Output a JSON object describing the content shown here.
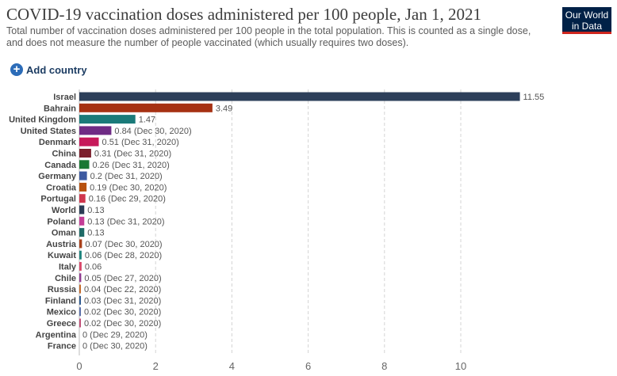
{
  "header": {
    "title": "COVID-19 vaccination doses administered per 100 people, Jan 1, 2021",
    "subtitle": "Total number of vaccination doses administered per 100 people in the total population. This is counted as a single dose, and does not measure the number of people vaccinated (which usually requires two doses).",
    "logo_line1": "Our World",
    "logo_line2": "in Data",
    "add_country_label": "Add country",
    "add_country_icon": "plus-circle-icon"
  },
  "colors": {
    "logo_bg": "#002147",
    "logo_accent": "#ce261e",
    "add_country_icon": "#2c6cb8"
  },
  "chart_data": {
    "type": "bar",
    "orientation": "horizontal",
    "title": "COVID-19 vaccination doses administered per 100 people, Jan 1, 2021",
    "xlabel": "",
    "ylabel": "",
    "xlim": [
      0,
      12
    ],
    "ticks": [
      0,
      2,
      4,
      6,
      8,
      10
    ],
    "grid": "vertical dashed",
    "categories": [
      "Israel",
      "Bahrain",
      "United Kingdom",
      "United States",
      "Denmark",
      "China",
      "Canada",
      "Germany",
      "Croatia",
      "Portugal",
      "World",
      "Poland",
      "Oman",
      "Austria",
      "Kuwait",
      "Italy",
      "Chile",
      "Russia",
      "Finland",
      "Mexico",
      "Greece",
      "Argentina",
      "France"
    ],
    "values": [
      11.55,
      3.49,
      1.47,
      0.84,
      0.51,
      0.31,
      0.26,
      0.2,
      0.19,
      0.16,
      0.13,
      0.13,
      0.13,
      0.07,
      0.06,
      0.06,
      0.05,
      0.04,
      0.03,
      0.02,
      0.02,
      0,
      0
    ],
    "labels": [
      "11.55",
      "3.49",
      "1.47",
      "0.84 (Dec 30, 2020)",
      "0.51 (Dec 31, 2020)",
      "0.31 (Dec 31, 2020)",
      "0.26 (Dec 31, 2020)",
      "0.2 (Dec 31, 2020)",
      "0.19 (Dec 30, 2020)",
      "0.16 (Dec 29, 2020)",
      "0.13",
      "0.13 (Dec 31, 2020)",
      "0.13",
      "0.07 (Dec 30, 2020)",
      "0.06 (Dec 28, 2020)",
      "0.06",
      "0.05 (Dec 27, 2020)",
      "0.04 (Dec 22, 2020)",
      "0.03 (Dec 31, 2020)",
      "0.02 (Dec 30, 2020)",
      "0.02 (Dec 30, 2020)",
      "0 (Dec 29, 2020)",
      "0 (Dec 30, 2020)"
    ],
    "colors": [
      "#2d3f5a",
      "#a63113",
      "#1a7a79",
      "#6f2b85",
      "#c7195a",
      "#7b1f2c",
      "#197833",
      "#3d5aa1",
      "#b7510f",
      "#d0364d",
      "#2b3c55",
      "#c43d97",
      "#1f6b67",
      "#a8401a",
      "#1c837c",
      "#d9476a",
      "#8f3a8f",
      "#c46b2c",
      "#2f5a8f",
      "#5a6fa8",
      "#c04e77",
      "#7a5a9c",
      "#4a6c9c"
    ]
  }
}
